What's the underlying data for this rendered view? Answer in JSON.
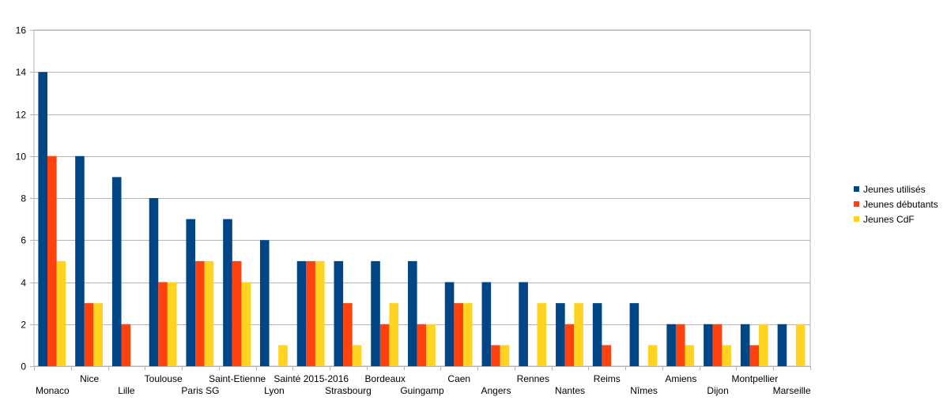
{
  "chart_data": {
    "type": "bar",
    "categories": [
      "Monaco",
      "Nice",
      "Lille",
      "Toulouse",
      "Paris SG",
      "Saint-Etienne",
      "Lyon",
      "Sainté 2015-2016",
      "Strasbourg",
      "Bordeaux",
      "Guingamp",
      "Caen",
      "Angers",
      "Rennes",
      "Nantes",
      "Reims",
      "Nîmes",
      "Amiens",
      "Dijon",
      "Montpellier",
      "Marseille"
    ],
    "series": [
      {
        "name": "Jeunes utilisés",
        "color": "#004586",
        "values": [
          14,
          10,
          9,
          8,
          7,
          7,
          6,
          5,
          5,
          5,
          5,
          4,
          4,
          4,
          3,
          3,
          3,
          2,
          2,
          2,
          2
        ]
      },
      {
        "name": "Jeunes débutants",
        "color": "#ff420e",
        "values": [
          10,
          3,
          2,
          4,
          5,
          5,
          0,
          5,
          3,
          2,
          2,
          3,
          1,
          0,
          2,
          1,
          0,
          2,
          2,
          1,
          0
        ]
      },
      {
        "name": "Jeunes CdF",
        "color": "#ffd320",
        "values": [
          5,
          3,
          0,
          4,
          5,
          4,
          1,
          5,
          1,
          3,
          2,
          3,
          1,
          3,
          3,
          0,
          1,
          1,
          1,
          2,
          2
        ]
      }
    ],
    "ylim": [
      0,
      16
    ],
    "yticks": [
      0,
      2,
      4,
      6,
      8,
      10,
      12,
      14,
      16
    ],
    "grid": true,
    "legend": "right",
    "title": "",
    "xlabel": "",
    "ylabel": ""
  }
}
